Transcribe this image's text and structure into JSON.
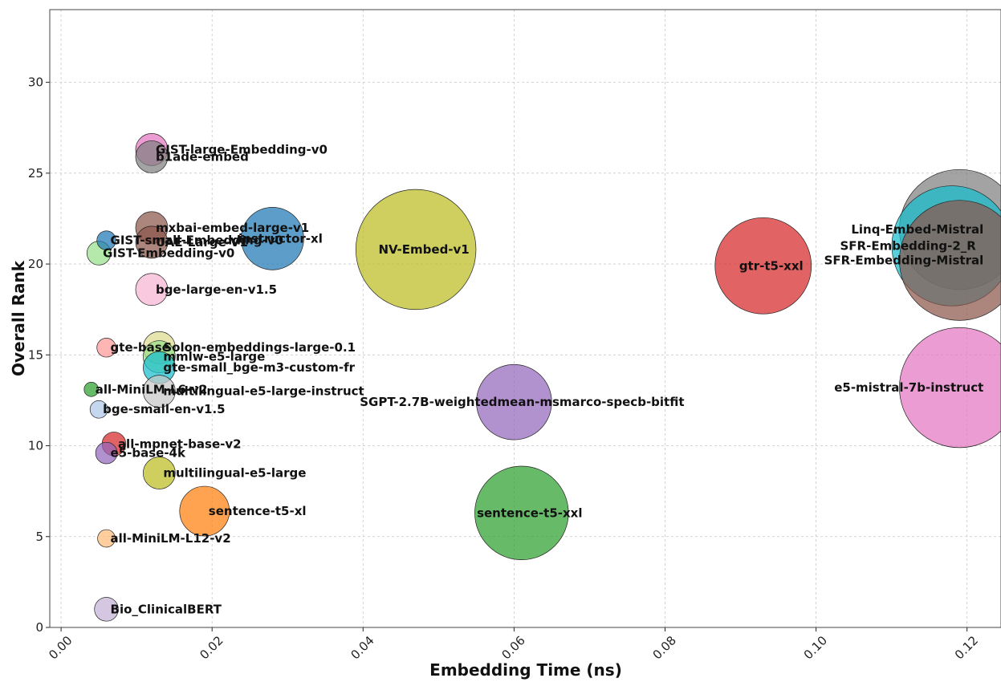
{
  "chart_data": {
    "type": "scatter",
    "title": "",
    "xlabel": "Embedding Time (ns)",
    "ylabel": "Overall Rank",
    "xlim": [
      -0.0015,
      0.1245
    ],
    "ylim": [
      0,
      34
    ],
    "xticks": [
      "0.00",
      "0.02",
      "0.04",
      "0.06",
      "0.08",
      "0.10",
      "0.12"
    ],
    "yticks": [
      "0",
      "5",
      "10",
      "15",
      "20",
      "25",
      "30"
    ],
    "grid": true,
    "bubble_size_encoding": "relative model size",
    "points": [
      {
        "label": "GIST-large-Embedding-v0",
        "x": 0.012,
        "y": 26.3,
        "size": 1.0,
        "color": "#e377c2"
      },
      {
        "label": "b1ade-embed",
        "x": 0.012,
        "y": 25.9,
        "size": 1.0,
        "color": "#7f7f7f"
      },
      {
        "label": "mxbai-embed-large-v1",
        "x": 0.012,
        "y": 22.0,
        "size": 1.0,
        "color": "#8c564b"
      },
      {
        "label": "GIST-small-Embedding-v0",
        "x": 0.006,
        "y": 21.3,
        "size": 0.35,
        "color": "#1f77b4"
      },
      {
        "label": "UAE-Large-V1",
        "x": 0.012,
        "y": 21.2,
        "size": 1.0,
        "color": "#8c564b"
      },
      {
        "label": "GIST-Embedding-v0",
        "x": 0.005,
        "y": 20.6,
        "size": 0.55,
        "color": "#98df8a"
      },
      {
        "label": "instructor-xl",
        "x": 0.028,
        "y": 21.4,
        "size": 3.8,
        "color": "#1f77b4"
      },
      {
        "label": "NV-Embed-v1",
        "x": 0.047,
        "y": 20.8,
        "size": 14.0,
        "color": "#bcbd22"
      },
      {
        "label": "gtr-t5-xxl",
        "x": 0.093,
        "y": 19.9,
        "size": 9.0,
        "color": "#d62728"
      },
      {
        "label": "Linq-Embed-Mistral",
        "x": 0.119,
        "y": 21.9,
        "size": 14.0,
        "color": "#7f7f7f"
      },
      {
        "label": "SFR-Embedding-2_R",
        "x": 0.118,
        "y": 21.0,
        "size": 14.0,
        "color": "#17becf"
      },
      {
        "label": "SFR-Embedding-Mistral",
        "x": 0.119,
        "y": 20.2,
        "size": 14.0,
        "color": "#8c564b"
      },
      {
        "label": "e5-mistral-7b-instruct",
        "x": 0.119,
        "y": 13.2,
        "size": 14.0,
        "color": "#e377c2"
      },
      {
        "label": "bge-large-en-v1.5",
        "x": 0.012,
        "y": 18.6,
        "size": 1.0,
        "color": "#f7b6d2"
      },
      {
        "label": "gte-base",
        "x": 0.006,
        "y": 15.4,
        "size": 0.35,
        "color": "#ff9896"
      },
      {
        "label": "Solon-embeddings-large-0.1",
        "x": 0.013,
        "y": 15.4,
        "size": 1.0,
        "color": "#dbdb8d"
      },
      {
        "label": "mmlw-e5-large",
        "x": 0.013,
        "y": 14.9,
        "size": 1.0,
        "color": "#98df8a"
      },
      {
        "label": "gte-small_bge-m3-custom-fr",
        "x": 0.013,
        "y": 14.3,
        "size": 1.0,
        "color": "#17becf"
      },
      {
        "label": "all-MiniLM-L6-v2",
        "x": 0.004,
        "y": 13.1,
        "size": 0.2,
        "color": "#2ca02c"
      },
      {
        "label": "multilingual-e5-large-instruct",
        "x": 0.013,
        "y": 13.0,
        "size": 1.0,
        "color": "#c7c7c7"
      },
      {
        "label": "SGPT-2.7B-weightedmean-msmarco-specb-bitfit",
        "x": 0.06,
        "y": 12.4,
        "size": 5.5,
        "color": "#9467bd"
      },
      {
        "label": "bge-small-en-v1.5",
        "x": 0.005,
        "y": 12.0,
        "size": 0.3,
        "color": "#aec7e8"
      },
      {
        "label": "all-mpnet-base-v2",
        "x": 0.007,
        "y": 10.1,
        "size": 0.55,
        "color": "#d62728"
      },
      {
        "label": "e5-base-4k",
        "x": 0.006,
        "y": 9.6,
        "size": 0.45,
        "color": "#9467bd"
      },
      {
        "label": "multilingual-e5-large",
        "x": 0.013,
        "y": 8.5,
        "size": 1.0,
        "color": "#bcbd22"
      },
      {
        "label": "sentence-t5-xl",
        "x": 0.019,
        "y": 6.4,
        "size": 2.4,
        "color": "#ff7f0e"
      },
      {
        "label": "sentence-t5-xxl",
        "x": 0.061,
        "y": 6.3,
        "size": 8.5,
        "color": "#2ca02c"
      },
      {
        "label": "all-MiniLM-L12-v2",
        "x": 0.006,
        "y": 4.9,
        "size": 0.3,
        "color": "#ffbb78"
      },
      {
        "label": "Bio_ClinicalBERT",
        "x": 0.006,
        "y": 1.0,
        "size": 0.55,
        "color": "#c5b0d5"
      }
    ]
  }
}
